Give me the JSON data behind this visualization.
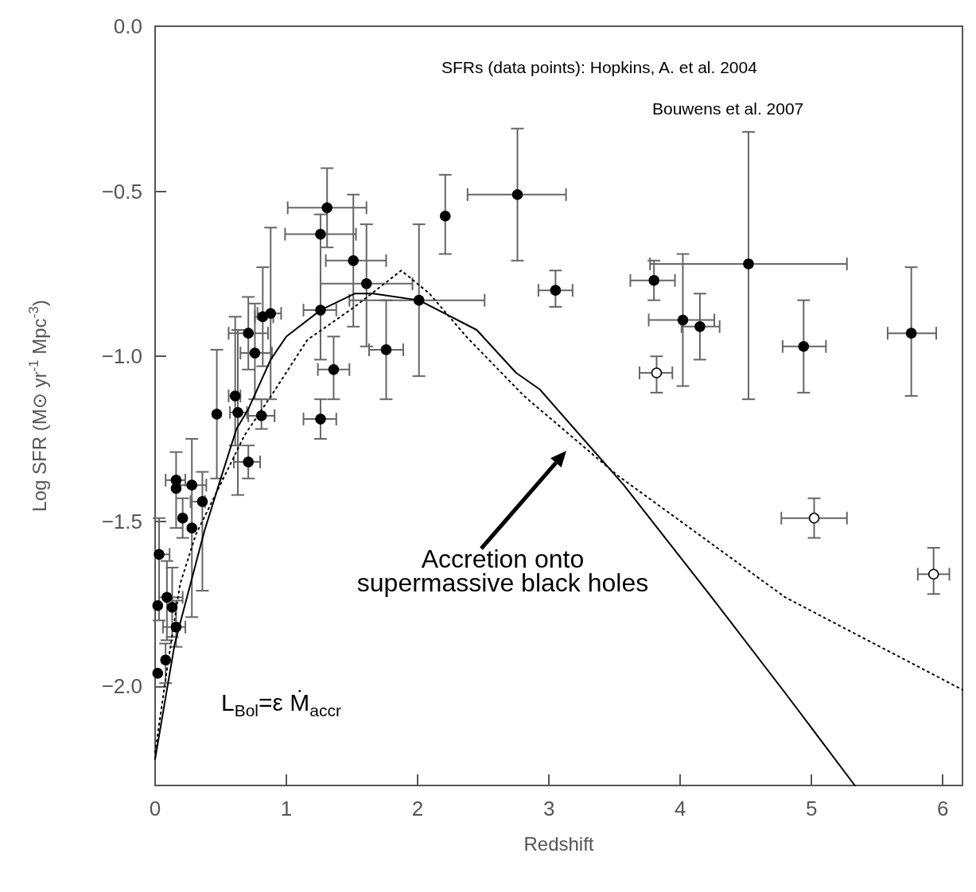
{
  "chart_data": {
    "type": "scatter",
    "xlabel": "Redshift",
    "ylabel": "Log SFR (M⊙ yr$^{-1}$ Mpc$^{-3}$)",
    "xlim": [
      0,
      6.15
    ],
    "xticks": [
      0,
      1,
      2,
      3,
      4,
      5,
      6
    ],
    "ylim": [
      -2.3,
      0
    ],
    "yticks": [
      {
        "value": -2,
        "label": "−2.0"
      },
      {
        "value": -1.5,
        "label": "−1.5"
      },
      {
        "value": -1,
        "label": "−1.0"
      },
      {
        "value": -0.5,
        "label": "−0.5"
      },
      {
        "value": 0,
        "label": "0.0"
      }
    ],
    "grid": false,
    "marker": "circle",
    "annotations": [
      "SFRs (data points): Hopkins, A. et al. 2004",
      "Bouwens et al. 2007",
      "Accretion onto\nsupermassive black holes",
      "L$_{Bol}$=ε Ṁ$_{accr}$"
    ],
    "series": [
      {
        "color": "#000000",
        "x": [
          2.21,
          2.76,
          3.05,
          3.8,
          4.02,
          4.15,
          4.52,
          4.94,
          5.76,
          1.31,
          1.51,
          1.61,
          1.76,
          2.01,
          1.36,
          1.26,
          1.26,
          1.26,
          0.88,
          0.82,
          0.71,
          0.76,
          0.61,
          0.63,
          0.81,
          0.47,
          0.71,
          0.16,
          0.16,
          0.28,
          0.36,
          0.21,
          0.28,
          0.03,
          0.09,
          0.02,
          0.13,
          0.16,
          0.08,
          0.02
        ],
        "values": [
          -0.575,
          -0.51,
          -0.8,
          -0.77,
          -0.89,
          -0.91,
          -0.72,
          -0.97,
          -0.93,
          -0.55,
          -0.71,
          -0.78,
          -0.98,
          -0.83,
          -1.04,
          -0.63,
          -0.86,
          -1.19,
          -0.87,
          -0.88,
          -0.93,
          -0.99,
          -1.12,
          -1.17,
          -1.18,
          -1.175,
          -1.32,
          -1.375,
          -1.4,
          -1.39,
          -1.44,
          -1.49,
          -1.52,
          -1.6,
          -1.73,
          -1.755,
          -1.76,
          -1.82,
          -1.92,
          -1.96
        ],
        "errors": [
          [
            -0.69,
            -0.45
          ],
          [
            -0.71,
            -0.31
          ],
          [
            -0.85,
            -0.74
          ],
          [
            -0.83,
            -0.71
          ],
          [
            -1.09,
            -0.69
          ],
          [
            -1.01,
            -0.81
          ],
          [
            -1.13,
            -0.32
          ],
          [
            -1.11,
            -0.83
          ],
          [
            -1.12,
            -0.73
          ],
          [
            -0.67,
            -0.43
          ],
          [
            -0.91,
            -0.51
          ],
          [
            -0.97,
            -0.6
          ],
          [
            -1.13,
            -0.83
          ],
          [
            -1.06,
            -0.6
          ],
          [
            -1.13,
            -0.94
          ],
          null,
          [
            -1.01,
            -0.57
          ],
          [
            -1.25,
            -1.13
          ],
          [
            -1.13,
            -0.61
          ],
          [
            -1.03,
            -0.73
          ],
          [
            -1.04,
            -0.82
          ],
          [
            -1.13,
            -0.84
          ],
          [
            -1.27,
            -0.88
          ],
          [
            -1.42,
            -0.92
          ],
          [
            -1.22,
            -1.13
          ],
          [
            -1.37,
            -0.98
          ],
          [
            -1.37,
            -1.27
          ],
          [
            -1.52,
            -1.29
          ],
          null,
          [
            -1.79,
            -1.25
          ],
          [
            -1.71,
            -1.35
          ],
          [
            -1.55,
            -1.43
          ],
          null,
          [
            -1.8,
            -1.49
          ],
          [
            -1.86,
            -1.62
          ],
          null,
          [
            -1.85,
            -1.64
          ],
          [
            -1.88,
            -1.74
          ],
          [
            -1.99,
            -1.87
          ],
          null
        ],
        "xerrors": [
          null,
          [
            2.38,
            3.13
          ],
          [
            2.92,
            3.18
          ],
          [
            3.62,
            3.96
          ],
          [
            3.76,
            4.26
          ],
          [
            4.01,
            4.3
          ],
          [
            3.77,
            5.27
          ],
          [
            4.78,
            5.11
          ],
          [
            5.58,
            5.95
          ],
          [
            1.01,
            1.61
          ],
          [
            1.3,
            1.76
          ],
          [
            1.26,
            1.96
          ],
          [
            1.63,
            1.89
          ],
          [
            1.48,
            2.51
          ],
          [
            1.24,
            1.48
          ],
          [
            0.99,
            1.53
          ],
          [
            1.13,
            1.38
          ],
          [
            1.13,
            1.38
          ],
          [
            0.78,
            0.96
          ],
          [
            0.76,
            0.9
          ],
          [
            0.56,
            0.86
          ],
          [
            0.65,
            0.89
          ],
          [
            0.56,
            0.65
          ],
          [
            0.57,
            0.7
          ],
          [
            0.71,
            0.91
          ],
          null,
          [
            0.6,
            0.8
          ],
          [
            0.08,
            0.23
          ],
          null,
          [
            0.19,
            0.39
          ],
          [
            0.27,
            0.38
          ],
          null,
          null,
          [
            0,
            0.11
          ],
          [
            0.03,
            0.21
          ],
          null,
          null,
          [
            0.06,
            0.23
          ],
          null,
          null
        ]
      },
      {
        "color": "#ffffff",
        "x": [
          3.82,
          5.02,
          5.93
        ],
        "values": [
          -1.05,
          -1.49,
          -1.66
        ],
        "errors": [
          [
            -1.11,
            -1.0
          ],
          [
            -1.55,
            -1.43
          ],
          [
            -1.72,
            -1.58
          ]
        ],
        "xerrors": [
          [
            3.69,
            3.94
          ],
          [
            4.77,
            5.27
          ],
          [
            5.81,
            6.05
          ]
        ]
      },
      {
        "type": "line",
        "color": "#000000",
        "line_style": "solid",
        "marker": "none",
        "x": [
          0,
          0.15,
          0.375,
          0.5,
          0.62,
          0.71,
          0.88,
          1.0,
          1.26,
          1.52,
          1.66,
          2.01,
          2.45,
          2.75,
          2.93,
          3.57,
          4.24,
          4.8,
          5.33
        ],
        "values": [
          -2.22,
          -1.87,
          -1.53,
          -1.37,
          -1.22,
          -1.16,
          -1.01,
          -0.94,
          -0.86,
          -0.81,
          -0.81,
          -0.83,
          -0.92,
          -1.05,
          -1.1,
          -1.39,
          -1.73,
          -2.02,
          -2.3
        ]
      },
      {
        "type": "line",
        "color": "#000000",
        "line_style": "dotted",
        "marker": "none",
        "x": [
          0,
          0.09,
          0.19,
          0.31,
          0.68,
          0.9,
          1.16,
          1.52,
          1.875,
          2.09,
          2.37,
          2.81,
          3.52,
          4.8,
          6.15
        ],
        "values": [
          -2.2,
          -1.95,
          -1.69,
          -1.54,
          -1.24,
          -1.11,
          -0.95,
          -0.85,
          -0.74,
          -0.81,
          -0.94,
          -1.12,
          -1.36,
          -1.73,
          -2.01
        ]
      }
    ]
  }
}
